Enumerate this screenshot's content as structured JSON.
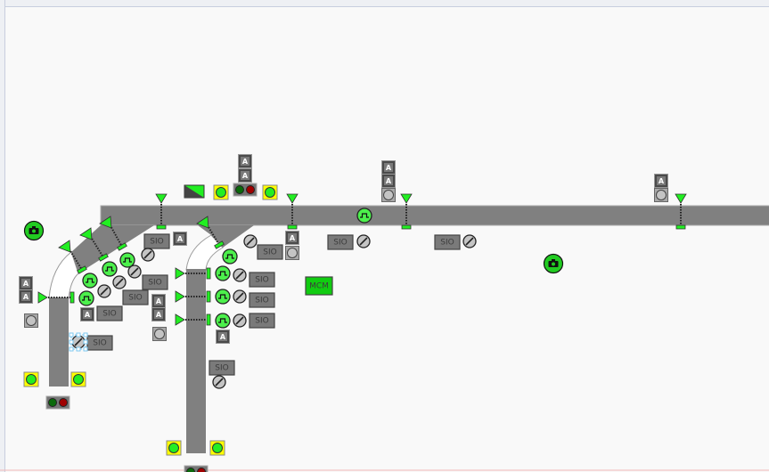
{
  "labels": {
    "sio": "SIO",
    "mcm": "MCM",
    "auto": "A"
  },
  "colors": {
    "conveyor": "#808080",
    "device_green": "#22ee22",
    "pulse_green": "#4cf04c",
    "yellow_frame": "#ffff00",
    "red_light": "#a00000",
    "dark_green_light": "#0a6a0a",
    "mcm_green": "#11cc11",
    "selection": "#7cc8f0"
  },
  "icons": [
    "camera-icon",
    "photo-eye-icon",
    "pulse-sensor-icon",
    "disabled-slash-icon",
    "beacon-icon",
    "traffic-light-icon",
    "auto-mode-icon",
    "pushbutton-icon",
    "split-diverter-icon"
  ],
  "devices": {
    "sio": [
      {
        "label": "SIO"
      },
      {
        "label": "SIO"
      },
      {
        "label": "SIO"
      },
      {
        "label": "SIO"
      },
      {
        "label": "SIO"
      },
      {
        "label": "SIO"
      },
      {
        "label": "SIO"
      },
      {
        "label": "SIO"
      },
      {
        "label": "SIO"
      },
      {
        "label": "SIO"
      },
      {
        "label": "SIO"
      },
      {
        "label": "SIO"
      }
    ],
    "mcm": {
      "label": "MCM"
    },
    "auto": [
      {
        "label": "A"
      },
      {
        "label": "A"
      },
      {
        "label": "A"
      },
      {
        "label": "A"
      },
      {
        "label": "A"
      },
      {
        "label": "A"
      },
      {
        "label": "A"
      },
      {
        "label": "A"
      },
      {
        "label": "A"
      },
      {
        "label": "A"
      },
      {
        "label": "A"
      },
      {
        "label": "A"
      },
      {
        "label": "A"
      },
      {
        "label": "A"
      }
    ]
  }
}
